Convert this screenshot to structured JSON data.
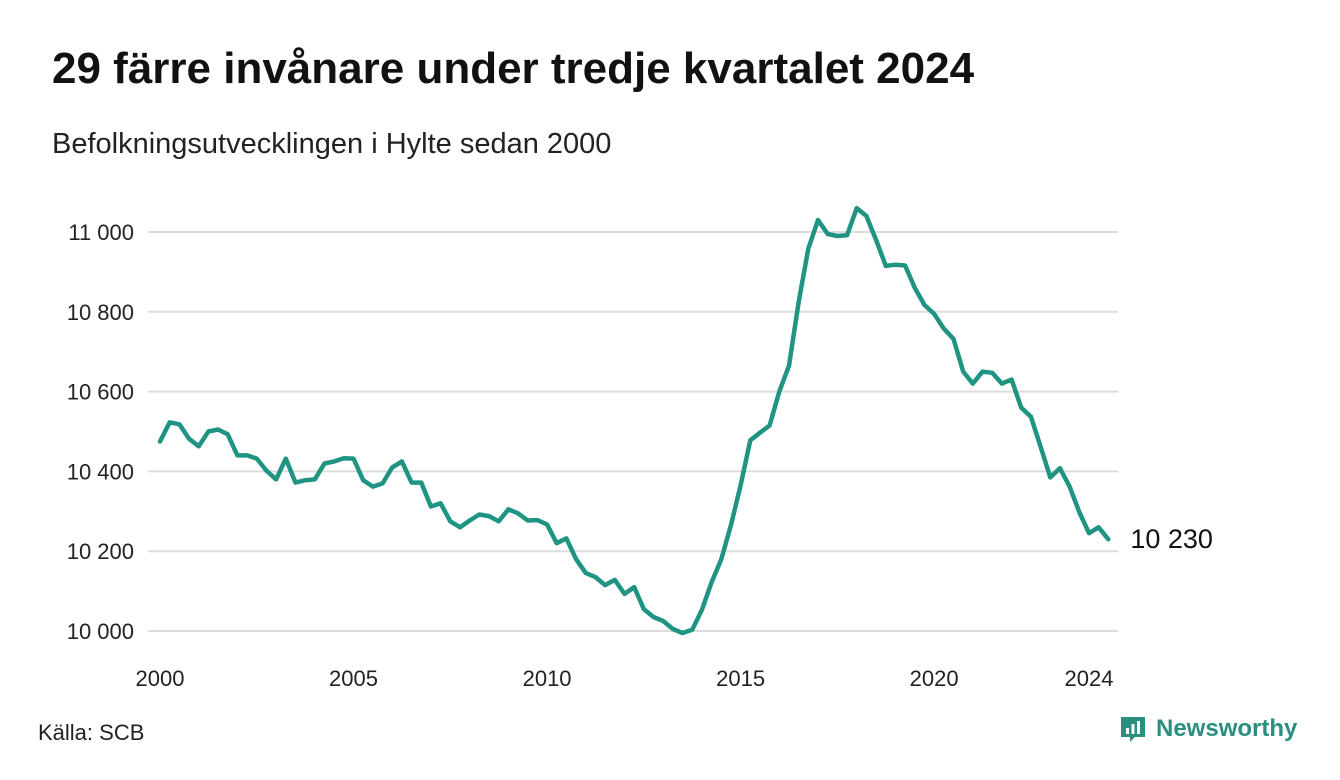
{
  "title": "29 färre invånare under tredje kvartalet 2024",
  "subtitle": "Befolkningsutvecklingen i Hylte sedan 2000",
  "source": "Källa: SCB",
  "brand": "Newsworthy",
  "colors": {
    "line": "#1f9483",
    "grid": "#dddddd",
    "brand": "#2a8f7f"
  },
  "chart_data": {
    "type": "line",
    "title": "29 färre invånare under tredje kvartalet 2024",
    "subtitle": "Befolkningsutvecklingen i Hylte sedan 2000",
    "xlabel": "",
    "ylabel": "",
    "xlim": [
      2000,
      2024.75
    ],
    "ylim": [
      10000,
      11000
    ],
    "grid": true,
    "x_ticks": [
      2000,
      2005,
      2010,
      2015,
      2020,
      2024
    ],
    "y_ticks": [
      10000,
      10200,
      10400,
      10600,
      10800,
      11000
    ],
    "x_tick_labels": [
      "2000",
      "2005",
      "2010",
      "2015",
      "2020",
      "2024"
    ],
    "y_tick_labels": [
      "10 000",
      "10 200",
      "10 400",
      "10 600",
      "10 800",
      "11 000"
    ],
    "end_label": "10 230",
    "series": [
      {
        "name": "",
        "x": [
          2000.0,
          2000.25,
          2000.5,
          2000.75,
          2001.0,
          2001.25,
          2001.5,
          2001.75,
          2002.0,
          2002.25,
          2002.5,
          2002.75,
          2003.0,
          2003.25,
          2003.5,
          2003.75,
          2004.0,
          2004.25,
          2004.5,
          2004.75,
          2005.0,
          2005.25,
          2005.5,
          2005.75,
          2006.0,
          2006.25,
          2006.5,
          2006.75,
          2007.0,
          2007.25,
          2007.5,
          2007.75,
          2008.0,
          2008.25,
          2008.5,
          2008.75,
          2009.0,
          2009.25,
          2009.5,
          2009.75,
          2010.0,
          2010.25,
          2010.5,
          2010.75,
          2011.0,
          2011.25,
          2011.5,
          2011.75,
          2012.0,
          2012.25,
          2012.5,
          2012.75,
          2013.0,
          2013.25,
          2013.5,
          2013.75,
          2014.0,
          2014.25,
          2014.5,
          2014.75,
          2015.0,
          2015.25,
          2015.5,
          2015.75,
          2016.0,
          2016.25,
          2016.5,
          2016.75,
          2017.0,
          2017.25,
          2017.5,
          2017.75,
          2018.0,
          2018.25,
          2018.5,
          2018.75,
          2019.0,
          2019.25,
          2019.5,
          2019.75,
          2020.0,
          2020.25,
          2020.5,
          2020.75,
          2021.0,
          2021.25,
          2021.5,
          2021.75,
          2022.0,
          2022.25,
          2022.5,
          2022.75,
          2023.0,
          2023.25,
          2023.5,
          2023.75,
          2024.0,
          2024.25,
          2024.5
        ],
        "values": [
          10475,
          10523,
          10518,
          10482,
          10463,
          10500,
          10505,
          10493,
          10440,
          10440,
          10432,
          10402,
          10380,
          10432,
          10372,
          10378,
          10380,
          10420,
          10425,
          10433,
          10432,
          10378,
          10362,
          10370,
          10410,
          10425,
          10372,
          10372,
          10312,
          10320,
          10275,
          10260,
          10277,
          10292,
          10288,
          10275,
          10305,
          10295,
          10277,
          10278,
          10267,
          10220,
          10232,
          10180,
          10145,
          10135,
          10115,
          10128,
          10093,
          10110,
          10055,
          10035,
          10025,
          10005,
          9995,
          10003,
          10053,
          10122,
          10180,
          10265,
          10365,
          10478,
          10497,
          10515,
          10600,
          10665,
          10825,
          10958,
          11030,
          10995,
          10990,
          10992,
          11060,
          11040,
          10980,
          10915,
          10918,
          10916,
          10860,
          10817,
          10795,
          10758,
          10732,
          10650,
          10620,
          10650,
          10647,
          10620,
          10630,
          10560,
          10537,
          10462,
          10385,
          10408,
          10362,
          10298,
          10245,
          10260,
          10230
        ]
      }
    ]
  }
}
